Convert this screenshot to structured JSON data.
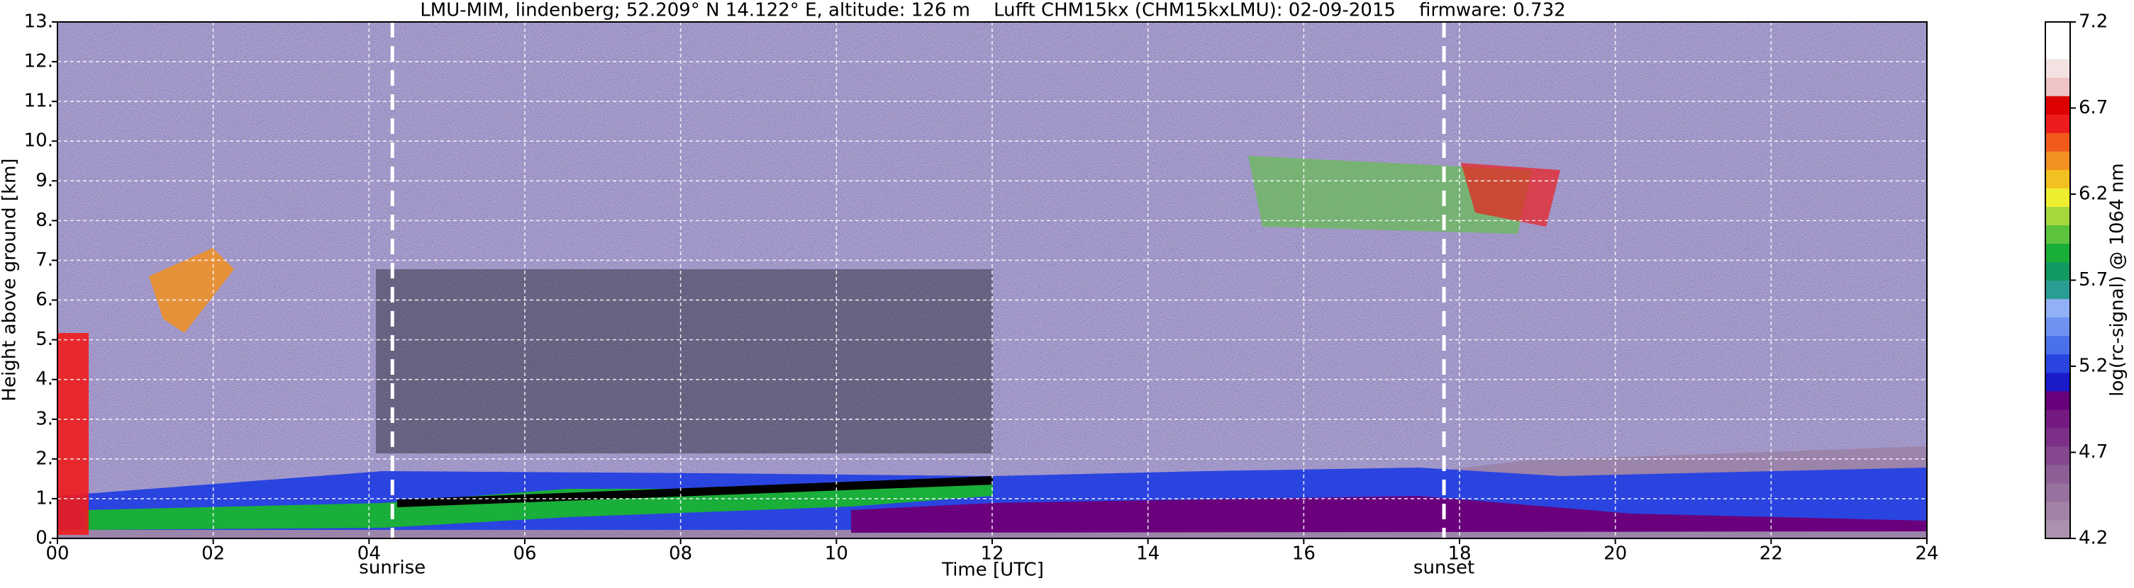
{
  "chart_data": {
    "type": "heatmap",
    "title": "LMU-MIM, lindenberg; 52.209° N 14.122° E, altitude: 126 m    Lufft CHM15kx (CHM15kxLMU): 02-09-2015    firmware: 0.732",
    "xlabel": "Time [UTC]",
    "ylabel": "Height above ground [km]",
    "xlim": [
      0,
      24
    ],
    "xticks": [
      {
        "value": 0,
        "label": "00"
      },
      {
        "value": 2,
        "label": "02"
      },
      {
        "value": 4,
        "label": "04"
      },
      {
        "value": 6,
        "label": "06"
      },
      {
        "value": 8,
        "label": "08"
      },
      10,
      12,
      14,
      16,
      18,
      20,
      22,
      24
    ],
    "ylim": [
      0,
      13
    ],
    "yticks": [
      {
        "value": 0,
        "label": "0."
      },
      {
        "value": 1,
        "label": "1."
      },
      {
        "value": 2,
        "label": "2."
      },
      {
        "value": 3,
        "label": "3."
      },
      {
        "value": 4,
        "label": "4."
      },
      {
        "value": 5,
        "label": "5."
      },
      {
        "value": 6,
        "label": "6."
      },
      {
        "value": 7,
        "label": "7."
      },
      {
        "value": 8,
        "label": "8."
      },
      {
        "value": 9,
        "label": "9."
      },
      {
        "value": 10,
        "label": "10."
      },
      {
        "value": 11,
        "label": "11."
      },
      {
        "value": 12,
        "label": "12."
      },
      {
        "value": 13,
        "label": "13."
      }
    ],
    "grid": true,
    "events": [
      {
        "label": "sunrise",
        "x": 4.3
      },
      {
        "label": "sunset",
        "x": 17.8
      }
    ],
    "colorbar": {
      "label": "log(rc-signal) @ 1064 nm",
      "lim": [
        4.2,
        7.2
      ],
      "ticks": [
        4.2,
        4.7,
        5.2,
        5.7,
        6.2,
        6.7,
        7.2
      ],
      "colors": [
        "#ab92ae",
        "#a283a6",
        "#98729e",
        "#8e5f96",
        "#86488e",
        "#7e3088",
        "#761a82",
        "#68007c",
        "#1a1ac8",
        "#2a44e0",
        "#4a70ec",
        "#6e92f2",
        "#92b0f6",
        "#2a9e94",
        "#129a62",
        "#1aae3a",
        "#5cc43c",
        "#a6d83c",
        "#eeee30",
        "#f2c020",
        "#f29020",
        "#f25a1c",
        "#ee1c1c",
        "#dd0000",
        "#eec4c4",
        "#f3e2e2",
        "#ffffff",
        "#ffffff"
      ]
    }
  }
}
